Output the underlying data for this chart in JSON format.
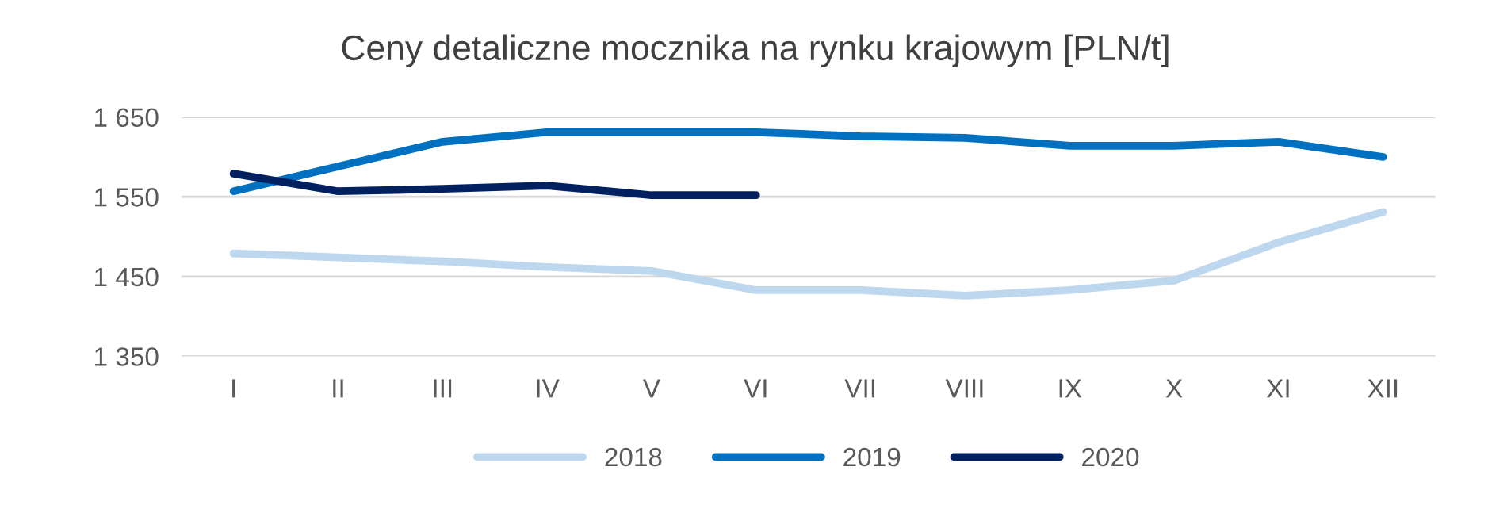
{
  "chart_data": {
    "type": "line",
    "title": "Ceny detaliczne mocznika na rynku krajowym [PLN/t]",
    "categories": [
      "I",
      "II",
      "III",
      "IV",
      "V",
      "VI",
      "VII",
      "VIII",
      "IX",
      "X",
      "XI",
      "XII"
    ],
    "series": [
      {
        "name": "2018",
        "color": "#bdd7ee",
        "values": [
          1479,
          1474,
          1469,
          1462,
          1457,
          1433,
          1433,
          1426,
          1433,
          1445,
          1493,
          1531
        ]
      },
      {
        "name": "2019",
        "color": "#0070c0",
        "values": [
          1557,
          1588,
          1619,
          1631,
          1631,
          1631,
          1626,
          1624,
          1614,
          1614,
          1619,
          1600
        ]
      },
      {
        "name": "2020",
        "color": "#002060",
        "values": [
          1579,
          1557,
          1560,
          1564,
          1552,
          1552,
          null,
          null,
          null,
          null,
          null,
          null
        ]
      }
    ],
    "ylim": [
      1350,
      1650
    ],
    "yticks": [
      {
        "value": 1350,
        "label": "1 350"
      },
      {
        "value": 1450,
        "label": "1 450"
      },
      {
        "value": 1550,
        "label": "1 550"
      },
      {
        "value": 1650,
        "label": "1 650"
      }
    ],
    "grid": "y",
    "legend": "bottom",
    "marker": "none",
    "line_style": "solid"
  }
}
